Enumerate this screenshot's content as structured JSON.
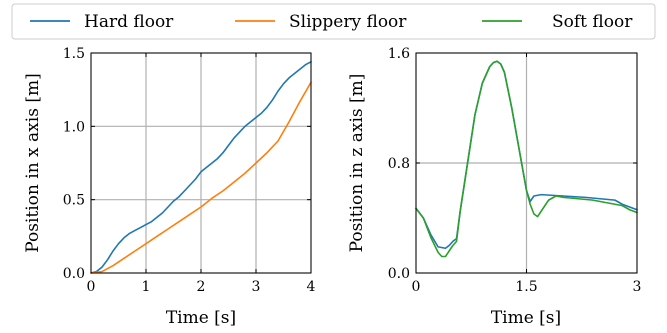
{
  "legend": {
    "entries": [
      {
        "label": "Hard floor",
        "color": "#1f77b4"
      },
      {
        "label": "Slippery floor",
        "color": "#ff7f0e"
      },
      {
        "label": "Soft floor",
        "color": "#2ca02c"
      }
    ]
  },
  "chart_data": [
    {
      "type": "line",
      "xlabel": "Time [s]",
      "ylabel": "Position in x axis [m]",
      "xlim": [
        0,
        4
      ],
      "ylim": [
        0,
        1.5
      ],
      "xticks": [
        0,
        1,
        2,
        3,
        4
      ],
      "xtick_labels": [
        "0",
        "1",
        "2",
        "3",
        "4"
      ],
      "yticks": [
        0,
        0.5,
        1.0,
        1.5
      ],
      "ytick_labels": [
        "0.0",
        "0.5",
        "1.0",
        "1.5"
      ],
      "grid": true,
      "series": [
        {
          "name": "Hard floor",
          "color": "#1f77b4",
          "x": [
            0,
            0.1,
            0.2,
            0.3,
            0.4,
            0.5,
            0.6,
            0.7,
            0.8,
            0.9,
            1.0,
            1.1,
            1.2,
            1.3,
            1.4,
            1.5,
            1.6,
            1.7,
            1.8,
            1.9,
            2.0,
            2.1,
            2.2,
            2.3,
            2.4,
            2.5,
            2.6,
            2.7,
            2.8,
            2.9,
            3.0,
            3.1,
            3.2,
            3.3,
            3.4,
            3.5,
            3.6,
            3.7,
            3.8,
            3.9,
            4.0
          ],
          "y": [
            0.0,
            0.01,
            0.04,
            0.09,
            0.15,
            0.2,
            0.24,
            0.27,
            0.29,
            0.31,
            0.33,
            0.35,
            0.38,
            0.41,
            0.45,
            0.49,
            0.52,
            0.56,
            0.6,
            0.64,
            0.69,
            0.72,
            0.75,
            0.78,
            0.82,
            0.87,
            0.92,
            0.96,
            1.0,
            1.03,
            1.06,
            1.09,
            1.13,
            1.18,
            1.24,
            1.29,
            1.33,
            1.36,
            1.39,
            1.42,
            1.44
          ]
        },
        {
          "name": "Slippery floor",
          "color": "#ff7f0e",
          "x": [
            0,
            0.2,
            0.4,
            0.6,
            0.8,
            1.0,
            1.2,
            1.4,
            1.6,
            1.8,
            2.0,
            2.2,
            2.4,
            2.6,
            2.8,
            3.0,
            3.2,
            3.4,
            3.6,
            3.8,
            4.0
          ],
          "y": [
            0.0,
            0.01,
            0.05,
            0.1,
            0.15,
            0.2,
            0.25,
            0.3,
            0.35,
            0.4,
            0.45,
            0.51,
            0.56,
            0.62,
            0.68,
            0.75,
            0.82,
            0.9,
            1.03,
            1.17,
            1.3
          ]
        }
      ]
    },
    {
      "type": "line",
      "xlabel": "Time [s]",
      "ylabel": "Position in z axis [m]",
      "xlim": [
        0,
        3
      ],
      "ylim": [
        0,
        1.6
      ],
      "xticks": [
        0,
        1.5,
        3
      ],
      "xtick_labels": [
        "0",
        "1.5",
        "3"
      ],
      "yticks": [
        0,
        0.8,
        1.6
      ],
      "ytick_labels": [
        "0.0",
        "0.8",
        "1.6"
      ],
      "grid": true,
      "series": [
        {
          "name": "Hard floor",
          "color": "#1f77b4",
          "x": [
            0,
            0.1,
            0.2,
            0.3,
            0.4,
            0.45,
            0.5,
            0.55,
            0.6,
            0.7,
            0.8,
            0.9,
            1.0,
            1.05,
            1.1,
            1.15,
            1.2,
            1.3,
            1.4,
            1.5,
            1.55,
            1.6,
            1.7,
            2.0,
            2.3,
            2.5,
            2.7,
            2.8,
            2.9,
            3.0
          ],
          "y": [
            0.47,
            0.4,
            0.28,
            0.19,
            0.18,
            0.2,
            0.23,
            0.25,
            0.45,
            0.8,
            1.15,
            1.38,
            1.5,
            1.53,
            1.54,
            1.52,
            1.46,
            1.2,
            0.9,
            0.6,
            0.52,
            0.56,
            0.57,
            0.56,
            0.55,
            0.54,
            0.53,
            0.5,
            0.48,
            0.46
          ]
        },
        {
          "name": "Soft floor",
          "color": "#2ca02c",
          "x": [
            0,
            0.1,
            0.2,
            0.3,
            0.35,
            0.4,
            0.45,
            0.5,
            0.55,
            0.6,
            0.7,
            0.8,
            0.9,
            1.0,
            1.05,
            1.1,
            1.15,
            1.2,
            1.3,
            1.4,
            1.5,
            1.55,
            1.6,
            1.65,
            1.7,
            1.8,
            1.9,
            2.0,
            2.2,
            2.4,
            2.6,
            2.8,
            2.9,
            3.0
          ],
          "y": [
            0.47,
            0.4,
            0.26,
            0.15,
            0.12,
            0.12,
            0.16,
            0.2,
            0.23,
            0.45,
            0.8,
            1.15,
            1.38,
            1.5,
            1.53,
            1.54,
            1.52,
            1.46,
            1.2,
            0.9,
            0.6,
            0.5,
            0.43,
            0.41,
            0.45,
            0.53,
            0.56,
            0.55,
            0.54,
            0.53,
            0.51,
            0.49,
            0.46,
            0.44
          ]
        }
      ]
    }
  ]
}
